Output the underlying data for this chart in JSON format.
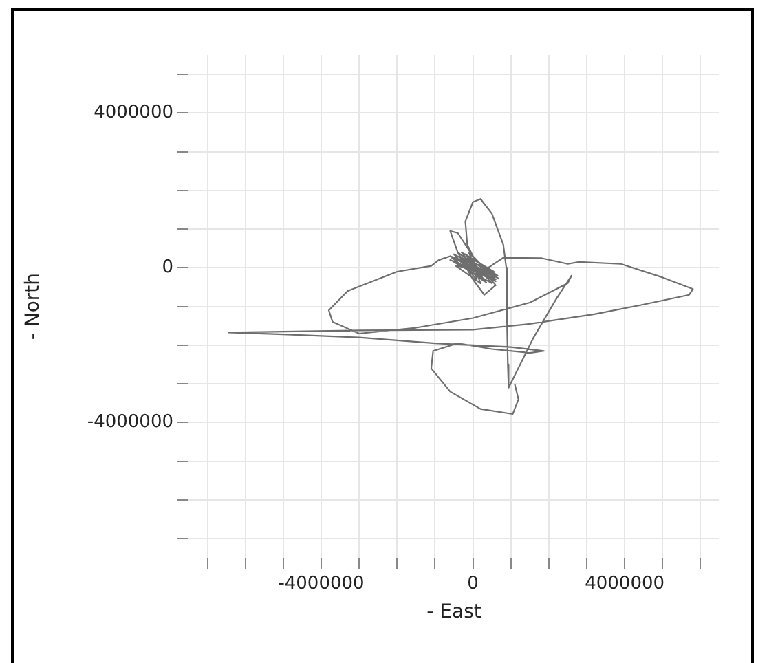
{
  "chart_data": {
    "type": "line",
    "xlabel": "- East",
    "ylabel": "- North",
    "grid": true,
    "marker": "none",
    "line_style": "solid",
    "xlim": [
      -7500000,
      6500000
    ],
    "ylim": [
      -7500000,
      5500000
    ],
    "xticks": [
      {
        "value": -7000000,
        "label": null
      },
      {
        "value": -6000000,
        "label": null
      },
      {
        "value": -5000000,
        "label": null
      },
      -4000000,
      {
        "value": -3000000,
        "label": null
      },
      {
        "value": -2000000,
        "label": null
      },
      {
        "value": -1000000,
        "label": null
      },
      0,
      {
        "value": 1000000,
        "label": null
      },
      {
        "value": 2000000,
        "label": null
      },
      {
        "value": 3000000,
        "label": null
      },
      4000000,
      {
        "value": 5000000,
        "label": null
      },
      {
        "value": 6000000,
        "label": null
      }
    ],
    "yticks": [
      {
        "value": -7000000,
        "label": null
      },
      {
        "value": -6000000,
        "label": null
      },
      {
        "value": -5000000,
        "label": null
      },
      -4000000,
      {
        "value": -3000000,
        "label": null
      },
      {
        "value": -2000000,
        "label": null
      },
      {
        "value": -1000000,
        "label": null
      },
      0,
      {
        "value": 1000000,
        "label": null
      },
      {
        "value": 2000000,
        "label": null
      },
      {
        "value": 3000000,
        "label": null
      },
      4000000,
      {
        "value": 5000000,
        "label": null
      }
    ],
    "series": [
      {
        "color": "#6e6e6e",
        "x": [
          -600000,
          400000,
          -400000,
          600000,
          -500000,
          500000,
          -200000,
          650000,
          -550000,
          300000,
          -300000,
          550000,
          -450000,
          200000,
          -100000,
          600000,
          -600000,
          450000,
          -350000,
          350000,
          -150000,
          680000,
          -500000,
          100000,
          0,
          500000,
          -250000,
          600000,
          -600000,
          300000,
          600000,
          300000,
          0,
          -400000,
          -600000,
          -400000,
          0,
          -150000,
          -200000,
          0,
          200000,
          500000,
          800000,
          880000,
          900000,
          920000,
          940000,
          1600000,
          2200000,
          2600000,
          2500000,
          1500000,
          0,
          -1500000,
          -3000000,
          -3700000,
          -3800000,
          -3300000,
          -2000000,
          -1100000,
          -900000,
          -600000,
          -300000,
          400000,
          800000,
          1800000,
          2500000,
          2800000,
          3900000,
          5000000,
          5800000,
          5700000,
          4500000,
          3200000,
          1500000,
          0,
          -3000000,
          -6450000,
          -5000000,
          -3000000,
          -1000000,
          1000000,
          1870000,
          1500000,
          500000,
          -400000,
          -1050000,
          -1100000,
          -600000,
          200000,
          1050000,
          1200000,
          1100000
        ],
        "values": [
          300000,
          -200000,
          400000,
          -350000,
          150000,
          -400000,
          350000,
          -200000,
          250000,
          -350000,
          400000,
          -100000,
          50000,
          -400000,
          380000,
          -300000,
          200000,
          -250000,
          300000,
          -380000,
          250000,
          -280000,
          350000,
          -300000,
          300000,
          -200000,
          100000,
          -300000,
          300000,
          -100000,
          -450000,
          -700000,
          -300000,
          400000,
          950000,
          900000,
          300000,
          600000,
          1200000,
          1700000,
          1780000,
          1400000,
          600000,
          0,
          -1500000,
          -2500000,
          -3100000,
          -1800000,
          -800000,
          -200000,
          -400000,
          -900000,
          -1300000,
          -1550000,
          -1700000,
          -1400000,
          -1100000,
          -600000,
          -100000,
          50000,
          200000,
          300000,
          200000,
          0,
          260000,
          250000,
          100000,
          150000,
          100000,
          -250000,
          -550000,
          -700000,
          -950000,
          -1200000,
          -1450000,
          -1600000,
          -1620000,
          -1670000,
          -1720000,
          -1800000,
          -1950000,
          -2050000,
          -2150000,
          -2200000,
          -2100000,
          -1950000,
          -2150000,
          -2600000,
          -3200000,
          -3650000,
          -3780000,
          -3400000,
          -3000000
        ]
      }
    ]
  }
}
